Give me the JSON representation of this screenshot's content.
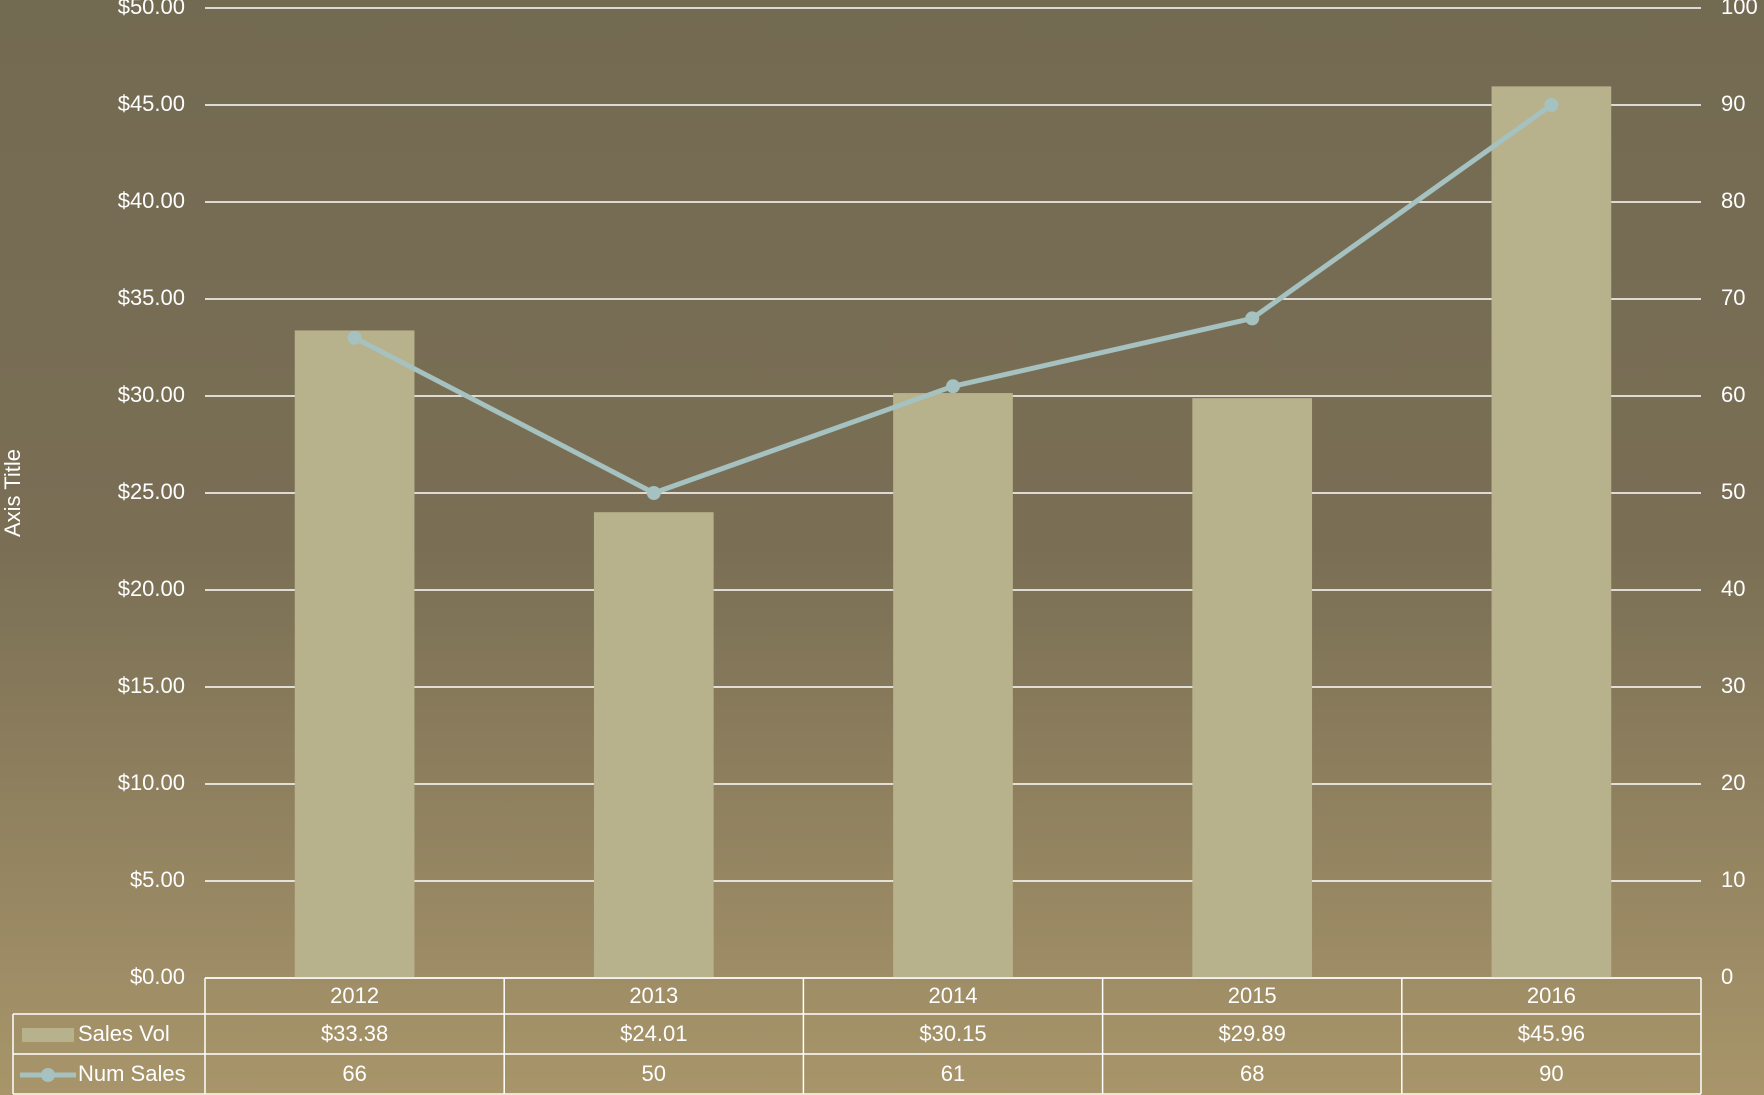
{
  "chart_data": {
    "type": "bar",
    "y_axis_title": "Axis Title",
    "categories": [
      "2012",
      "2013",
      "2014",
      "2015",
      "2016"
    ],
    "series": [
      {
        "name": "Sales Vol",
        "type": "bar",
        "color": "#b8b28c",
        "values": [
          33.38,
          24.01,
          30.15,
          29.89,
          45.96
        ],
        "value_labels": [
          "$33.38",
          "$24.01",
          "$30.15",
          "$29.89",
          "$45.96"
        ]
      },
      {
        "name": "Num Sales",
        "type": "line",
        "axis": "y2",
        "color": "#a5c1c0",
        "values": [
          66,
          50,
          61,
          68,
          90
        ]
      }
    ],
    "ylim": [
      0,
      50
    ],
    "yticks": [
      {
        "value": 0,
        "label": "$0.00"
      },
      {
        "value": 5,
        "label": "$5.00"
      },
      {
        "value": 10,
        "label": "$10.00"
      },
      {
        "value": 15,
        "label": "$15.00"
      },
      {
        "value": 20,
        "label": "$20.00"
      },
      {
        "value": 25,
        "label": "$25.00"
      },
      {
        "value": 30,
        "label": "$30.00"
      },
      {
        "value": 35,
        "label": "$35.00"
      },
      {
        "value": 40,
        "label": "$40.00"
      },
      {
        "value": 45,
        "label": "$45.00"
      },
      {
        "value": 50,
        "label": "$50.00"
      }
    ],
    "y2lim": [
      0,
      100
    ],
    "y2ticks": [
      0,
      10,
      20,
      30,
      40,
      50,
      60,
      70,
      80,
      90,
      100
    ],
    "grid": true
  }
}
